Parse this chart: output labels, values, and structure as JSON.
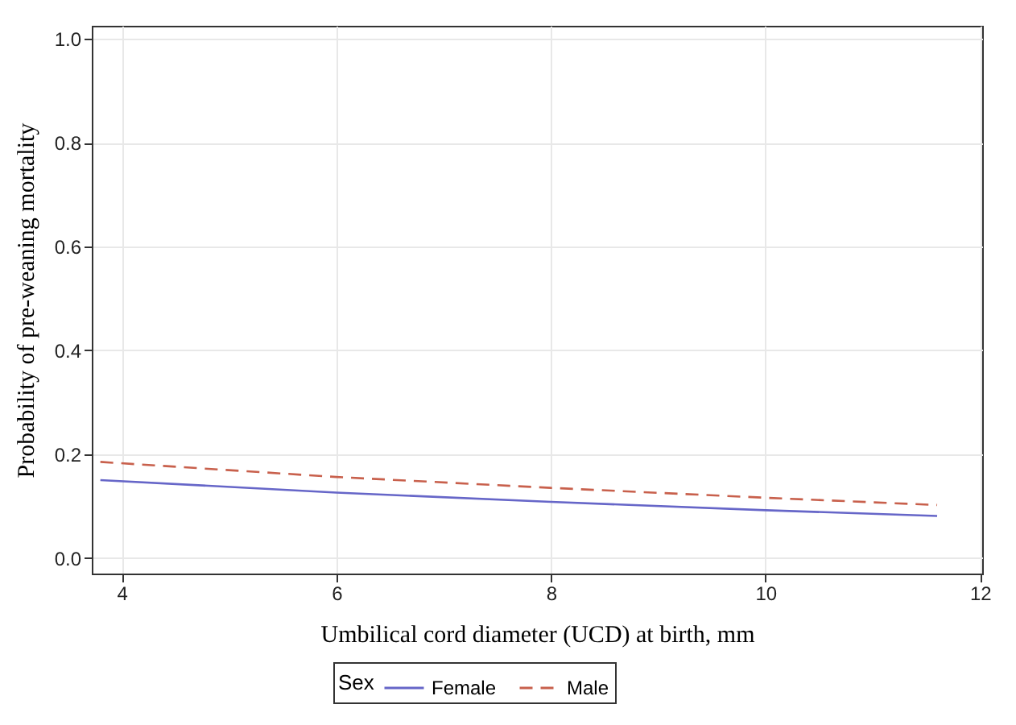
{
  "chart_data": {
    "type": "line",
    "xlabel": "Umbilical cord diameter (UCD) at birth, mm",
    "ylabel": "Probability of pre-weaning mortality",
    "legend_title": "Sex",
    "legend": "bottom",
    "grid": true,
    "x": [
      3.8,
      6,
      8,
      10,
      11.6
    ],
    "xlim": [
      3.72,
      12.02
    ],
    "xticks": [
      4,
      6,
      8,
      10,
      12
    ],
    "ylim": [
      -0.03,
      1.025
    ],
    "yticks": [
      {
        "value": 0,
        "label": "0.0"
      },
      0.2,
      0.4,
      0.6,
      0.8,
      {
        "value": 1,
        "label": "1.0"
      }
    ],
    "series": [
      {
        "name": "Female",
        "color": "#6666c8",
        "line_style": "solid",
        "values": [
          0.15,
          0.126,
          0.108,
          0.092,
          0.081
        ]
      },
      {
        "name": "Male",
        "color": "#c8604c",
        "line_style": "dashed",
        "values": [
          0.185,
          0.156,
          0.135,
          0.116,
          0.102
        ]
      }
    ]
  }
}
